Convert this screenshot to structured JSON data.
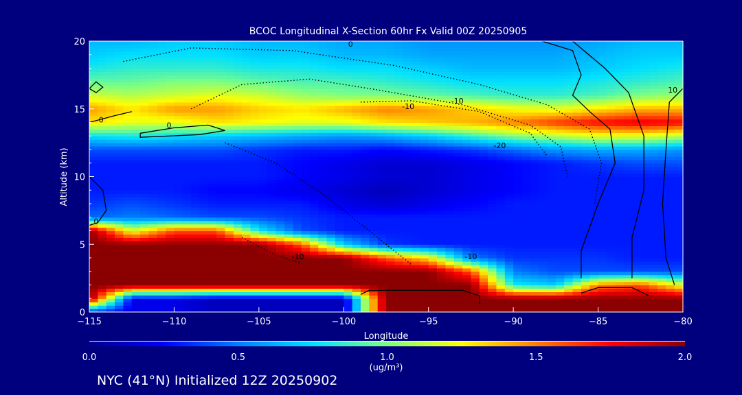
{
  "chart_data": {
    "type": "heatmap",
    "title": "BCOC Longitudinal X-Section 60hr  Fx Valid 00Z 20250905",
    "xlabel": "Longitude",
    "ylabel": "Altitude (km)",
    "xlim": [
      -115,
      -80
    ],
    "ylim": [
      0,
      20
    ],
    "x_ticks": [
      "-115",
      "-110",
      "-105",
      "-100",
      "-95",
      "-90",
      "-85",
      "-80"
    ],
    "y_ticks": [
      "0",
      "5",
      "10",
      "15",
      "20"
    ],
    "colorbar": {
      "min": 0.0,
      "max": 2.0,
      "ticks": [
        "0.0",
        "0.5",
        "1.0",
        "1.5",
        "2.0"
      ],
      "label": "(ug/m³)",
      "colors": [
        "#00008f",
        "#0000ff",
        "#0080ff",
        "#00e0ff",
        "#80ff80",
        "#ffff00",
        "#ff8000",
        "#ff0000",
        "#8b0000"
      ]
    },
    "lon": [
      -115,
      -112.5,
      -110,
      -107.5,
      -105,
      -102.5,
      -100,
      -97.5,
      -95,
      -92.5,
      -90,
      -87.5,
      -85,
      -82.5,
      -80
    ],
    "alt": [
      0,
      1,
      2,
      3,
      4,
      5,
      6,
      7,
      8,
      9,
      10,
      11,
      12,
      13,
      14,
      15,
      16,
      17,
      18,
      19,
      20
    ],
    "values": [
      [
        0.3,
        0.2,
        0.2,
        0.1,
        0.1,
        0.1,
        0.1,
        2.0,
        2.0,
        2.0,
        2.0,
        2.0,
        2.0,
        2.0,
        2.0
      ],
      [
        2.0,
        0.2,
        0.2,
        0.1,
        0.1,
        0.1,
        0.1,
        2.0,
        2.0,
        2.0,
        2.0,
        2.0,
        2.0,
        2.0,
        2.0
      ],
      [
        2.0,
        2.0,
        2.0,
        2.0,
        2.0,
        2.0,
        2.0,
        2.0,
        2.0,
        2.0,
        0.8,
        0.7,
        1.5,
        1.6,
        1.2
      ],
      [
        2.0,
        2.0,
        2.0,
        2.0,
        2.0,
        2.0,
        2.0,
        2.0,
        2.0,
        1.6,
        0.5,
        0.4,
        0.4,
        0.4,
        0.4
      ],
      [
        2.0,
        2.0,
        2.0,
        2.0,
        2.0,
        2.0,
        2.0,
        1.6,
        1.3,
        0.5,
        0.35,
        0.35,
        0.35,
        0.3,
        0.3
      ],
      [
        2.0,
        2.0,
        2.0,
        2.0,
        2.0,
        1.6,
        0.7,
        0.35,
        0.3,
        0.3,
        0.3,
        0.3,
        0.3,
        0.3,
        0.3
      ],
      [
        2.0,
        1.2,
        1.6,
        1.6,
        0.8,
        0.4,
        0.3,
        0.3,
        0.3,
        0.3,
        0.3,
        0.3,
        0.3,
        0.3,
        0.3
      ],
      [
        0.45,
        0.5,
        0.45,
        0.4,
        0.4,
        0.35,
        0.3,
        0.3,
        0.3,
        0.3,
        0.3,
        0.3,
        0.3,
        0.3,
        0.3
      ],
      [
        0.35,
        0.4,
        0.35,
        0.3,
        0.3,
        0.3,
        0.2,
        0.15,
        0.2,
        0.25,
        0.3,
        0.3,
        0.3,
        0.3,
        0.3
      ],
      [
        0.3,
        0.3,
        0.3,
        0.25,
        0.25,
        0.2,
        0.15,
        0.1,
        0.15,
        0.2,
        0.25,
        0.3,
        0.3,
        0.3,
        0.3
      ],
      [
        0.3,
        0.3,
        0.3,
        0.3,
        0.3,
        0.25,
        0.2,
        0.15,
        0.15,
        0.2,
        0.25,
        0.3,
        0.3,
        0.3,
        0.3
      ],
      [
        0.3,
        0.3,
        0.3,
        0.3,
        0.3,
        0.25,
        0.2,
        0.15,
        0.15,
        0.2,
        0.25,
        0.3,
        0.35,
        0.4,
        0.4
      ],
      [
        0.4,
        0.4,
        0.4,
        0.4,
        0.35,
        0.3,
        0.3,
        0.25,
        0.3,
        0.35,
        0.45,
        0.55,
        0.6,
        0.6,
        0.55
      ],
      [
        0.75,
        0.8,
        0.75,
        0.7,
        0.65,
        0.6,
        0.55,
        0.6,
        0.7,
        0.85,
        1.0,
        1.1,
        1.2,
        1.2,
        1.1
      ],
      [
        1.3,
        1.2,
        1.2,
        1.3,
        1.25,
        1.2,
        1.2,
        1.3,
        1.35,
        1.4,
        1.5,
        1.65,
        1.75,
        1.8,
        1.75
      ],
      [
        1.45,
        1.3,
        1.45,
        1.45,
        1.35,
        1.3,
        1.4,
        1.5,
        1.45,
        1.35,
        1.25,
        1.2,
        1.3,
        1.4,
        1.4
      ],
      [
        1.15,
        1.1,
        1.15,
        1.2,
        1.15,
        1.05,
        1.0,
        1.0,
        0.95,
        0.9,
        0.85,
        0.85,
        0.9,
        1.0,
        1.05
      ],
      [
        0.95,
        0.95,
        1.0,
        1.0,
        0.95,
        0.9,
        0.9,
        0.85,
        0.8,
        0.75,
        0.75,
        0.75,
        0.8,
        0.85,
        0.9
      ],
      [
        0.8,
        0.85,
        0.85,
        0.85,
        0.8,
        0.8,
        0.75,
        0.75,
        0.7,
        0.65,
        0.65,
        0.65,
        0.7,
        0.75,
        0.8
      ],
      [
        0.7,
        0.75,
        0.75,
        0.75,
        0.7,
        0.7,
        0.65,
        0.65,
        0.6,
        0.6,
        0.6,
        0.6,
        0.65,
        0.7,
        0.7
      ],
      [
        0.65,
        0.65,
        0.7,
        0.7,
        0.65,
        0.65,
        0.6,
        0.6,
        0.55,
        0.55,
        0.55,
        0.55,
        0.6,
        0.65,
        0.65
      ]
    ],
    "contour_labels": [
      "0",
      "0",
      "0",
      "-10",
      "-10",
      "-20",
      "-10",
      "-10",
      "0",
      "10"
    ],
    "footer": "NYC (41°N) Initialized 12Z 20250902"
  }
}
